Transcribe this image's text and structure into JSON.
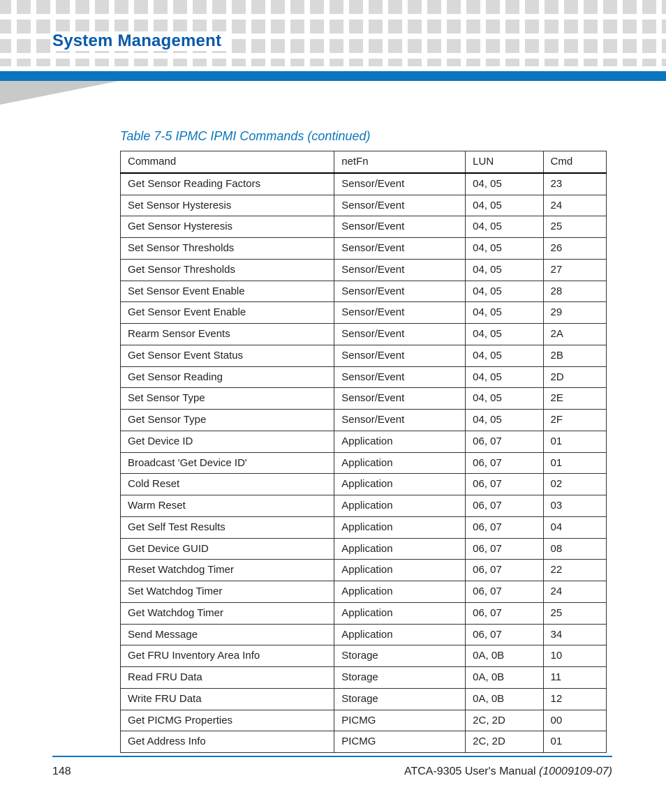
{
  "page": {
    "title": "System Management",
    "number": "148",
    "doc_title_prefix": "ATCA-9305 User's Manual ",
    "doc_id": "(10009109-07)"
  },
  "colors": {
    "accent": "#0b76bd",
    "title": "#0a5aa8",
    "dot": "#d9d9d9",
    "wedge": "#c9c9c9",
    "text": "#222222",
    "border": "#333333"
  },
  "table": {
    "caption": "Table 7-5 IPMC IPMI Commands (continued)",
    "columns": [
      "Command",
      "netFn",
      "LUN",
      "Cmd"
    ],
    "col_widths_pct": [
      44,
      27,
      16,
      13
    ],
    "rows": [
      [
        "Get Sensor Reading Factors",
        "Sensor/Event",
        "04, 05",
        "23"
      ],
      [
        "Set Sensor Hysteresis",
        "Sensor/Event",
        "04, 05",
        "24"
      ],
      [
        "Get Sensor Hysteresis",
        "Sensor/Event",
        "04, 05",
        "25"
      ],
      [
        "Set Sensor Thresholds",
        "Sensor/Event",
        "04, 05",
        "26"
      ],
      [
        "Get Sensor Thresholds",
        "Sensor/Event",
        "04, 05",
        "27"
      ],
      [
        "Set Sensor Event Enable",
        "Sensor/Event",
        "04, 05",
        "28"
      ],
      [
        "Get Sensor Event Enable",
        "Sensor/Event",
        "04, 05",
        "29"
      ],
      [
        "Rearm Sensor Events",
        "Sensor/Event",
        "04, 05",
        "2A"
      ],
      [
        "Get Sensor Event Status",
        "Sensor/Event",
        "04, 05",
        "2B"
      ],
      [
        "Get Sensor Reading",
        "Sensor/Event",
        "04, 05",
        "2D"
      ],
      [
        "Set Sensor Type",
        "Sensor/Event",
        "04, 05",
        "2E"
      ],
      [
        "Get Sensor Type",
        "Sensor/Event",
        "04, 05",
        "2F"
      ],
      [
        "Get Device ID",
        "Application",
        "06, 07",
        "01"
      ],
      [
        "Broadcast 'Get Device ID'",
        "Application",
        "06, 07",
        "01"
      ],
      [
        "Cold Reset",
        "Application",
        "06, 07",
        "02"
      ],
      [
        "Warm Reset",
        "Application",
        "06, 07",
        "03"
      ],
      [
        "Get Self Test Results",
        "Application",
        "06, 07",
        "04"
      ],
      [
        "Get Device GUID",
        "Application",
        "06, 07",
        "08"
      ],
      [
        "Reset Watchdog Timer",
        "Application",
        "06, 07",
        "22"
      ],
      [
        "Set Watchdog Timer",
        "Application",
        "06, 07",
        "24"
      ],
      [
        "Get Watchdog Timer",
        "Application",
        "06, 07",
        "25"
      ],
      [
        "Send Message",
        "Application",
        "06, 07",
        "34"
      ],
      [
        "Get FRU Inventory Area Info",
        "Storage",
        "0A, 0B",
        "10"
      ],
      [
        "Read FRU Data",
        "Storage",
        "0A, 0B",
        "11"
      ],
      [
        "Write FRU Data",
        "Storage",
        "0A, 0B",
        "12"
      ],
      [
        "Get PICMG Properties",
        "PICMG",
        "2C, 2D",
        "00"
      ],
      [
        "Get Address Info",
        "PICMG",
        "2C, 2D",
        "01"
      ]
    ]
  }
}
